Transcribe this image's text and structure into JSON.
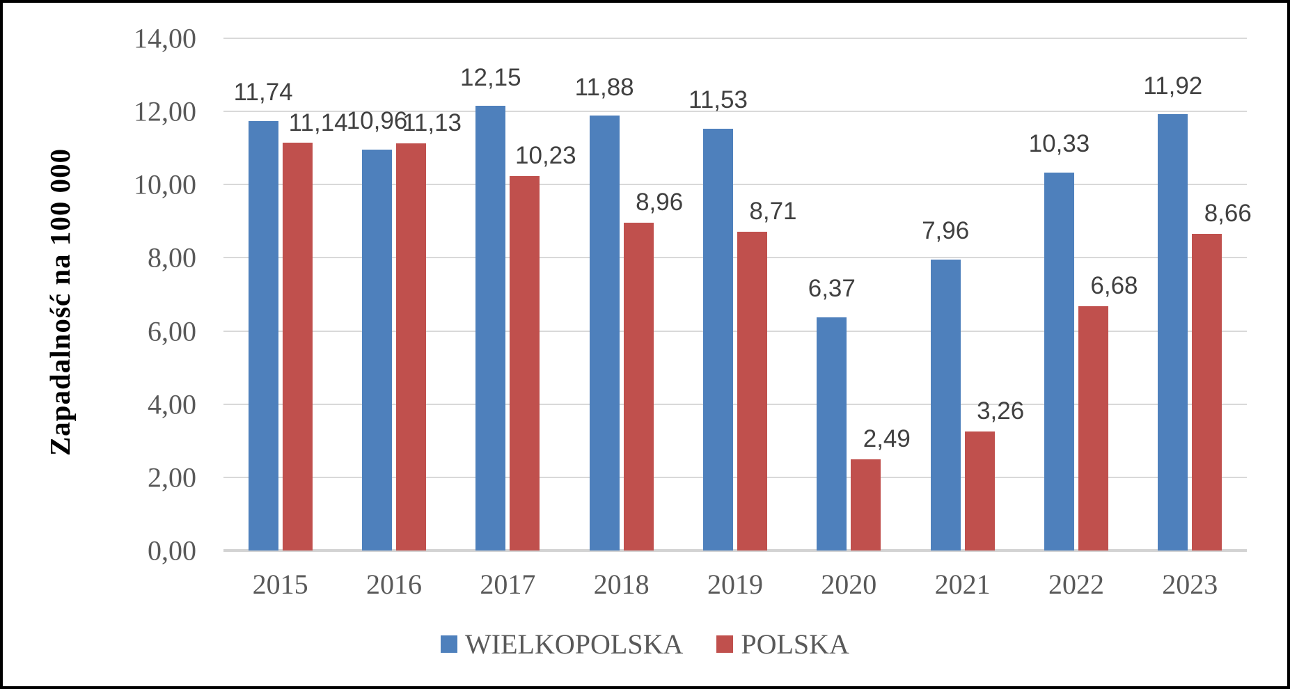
{
  "chart_data": {
    "type": "bar",
    "title": "",
    "xlabel": "",
    "ylabel": "Zapadalność na 100 000",
    "ylim": [
      0,
      14
    ],
    "ytick_step": 2,
    "grid": true,
    "legend_position": "bottom",
    "decimal_separator": ",",
    "categories": [
      "2015",
      "2016",
      "2017",
      "2018",
      "2019",
      "2020",
      "2021",
      "2022",
      "2023"
    ],
    "yticks": [
      {
        "value": 0,
        "label": "0,00"
      },
      {
        "value": 2,
        "label": "2,00"
      },
      {
        "value": 4,
        "label": "4,00"
      },
      {
        "value": 6,
        "label": "6,00"
      },
      {
        "value": 8,
        "label": "8,00"
      },
      {
        "value": 10,
        "label": "10,00"
      },
      {
        "value": 12,
        "label": "12,00"
      },
      {
        "value": 14,
        "label": "14,00"
      }
    ],
    "series": [
      {
        "name": "WIELKOPOLSKA",
        "color": "#4E80BC",
        "values": [
          11.74,
          10.96,
          12.15,
          11.88,
          11.53,
          6.37,
          7.96,
          10.33,
          11.92
        ],
        "labels": [
          "11,74",
          "10,96",
          "12,15",
          "11,88",
          "11,53",
          "6,37",
          "7,96",
          "10,33",
          "11,92"
        ]
      },
      {
        "name": "POLSKA",
        "color": "#C0504D",
        "values": [
          11.14,
          11.13,
          10.23,
          8.96,
          8.71,
          2.49,
          3.26,
          6.68,
          8.66
        ],
        "labels": [
          "11,14",
          "11,13",
          "10,23",
          "8,96",
          "8,71",
          "2,49",
          "3,26",
          "6,68",
          "8,66"
        ]
      }
    ]
  },
  "colors": {
    "series_wielkopolska": "#4E80BC",
    "series_polska": "#C0504D",
    "gridline": "#D9D9D9",
    "axis_baseline": "#D3D3D3",
    "tick_text": "#595959",
    "data_label_text": "#404040",
    "axis_title_text": "#000000",
    "frame_border": "#000000",
    "background": "#FFFFFF"
  }
}
